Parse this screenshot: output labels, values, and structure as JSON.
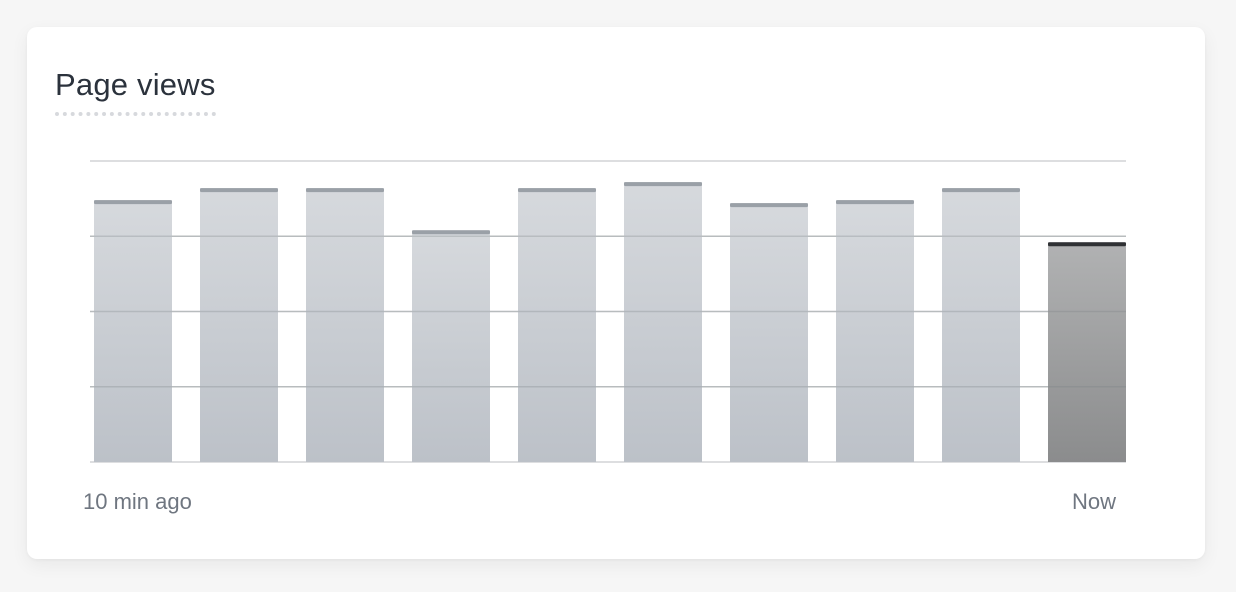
{
  "card": {
    "title": "Page views"
  },
  "chart_data": {
    "type": "bar",
    "title": "Page views",
    "categories": [
      "",
      "",
      "",
      "",
      "",
      "",
      "",
      "",
      "",
      ""
    ],
    "values": [
      87,
      91,
      91,
      77,
      91,
      93,
      86,
      87,
      91,
      73
    ],
    "highlight_index": 9,
    "ylim": [
      0,
      100
    ],
    "grid": true,
    "gridlines": 4,
    "x_start_label": "10 min ago",
    "x_end_label": "Now",
    "colors": {
      "bar_top": "#d6d9dd",
      "bar_bottom": "#bcc1c8",
      "bar_cap": "#9aa0a7",
      "highlight_top": "#b1b2b3",
      "highlight_bottom": "#8b8c8d",
      "highlight_cap": "#2f3134",
      "grid": "#d2d4d6",
      "grid_overlay": "rgba(120,124,130,0.28)"
    }
  }
}
